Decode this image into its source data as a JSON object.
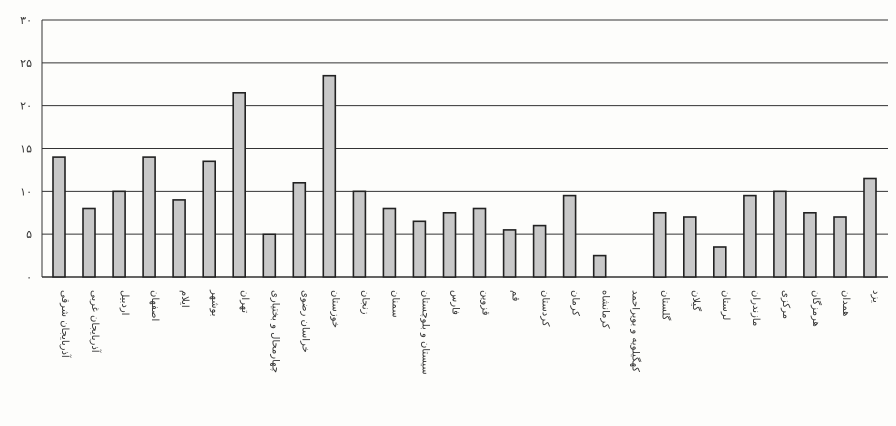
{
  "chart_data": {
    "type": "bar",
    "categories": [
      "آذربایجان شرقی",
      "آذربایجان غربی",
      "اردبیل",
      "اصفهان",
      "ایلام",
      "بوشهر",
      "تهران",
      "چهارمحال و بختیاری",
      "خراسان رضوی",
      "خوزستان",
      "زنجان",
      "سمنان",
      "سیستان و بلوچستان",
      "فارس",
      "قزوین",
      "قم",
      "کردستان",
      "کرمان",
      "کرمانشاه",
      "کهگیلویه و بویراحمد",
      "گلستان",
      "گیلان",
      "لرستان",
      "مازندران",
      "مرکزی",
      "هرمزگان",
      "همدان",
      "یزد"
    ],
    "values": [
      14,
      8,
      10,
      14,
      9,
      13.5,
      21.5,
      5,
      11,
      23.5,
      10,
      8,
      6.5,
      7.5,
      8,
      5.5,
      6,
      9.5,
      2.5,
      0,
      7.5,
      7,
      3.5,
      9.5,
      10,
      7.5,
      7,
      11.5
    ],
    "ylim": [
      0,
      30
    ],
    "yticks": [
      "۰",
      "۵",
      "۱۰",
      "۱۵",
      "۲۰",
      "۲۵",
      "۳۰"
    ],
    "grid": true,
    "colors": {
      "bar_fill": "#c8c8c8",
      "bar_stroke": "#222222",
      "grid": "#333333"
    }
  }
}
